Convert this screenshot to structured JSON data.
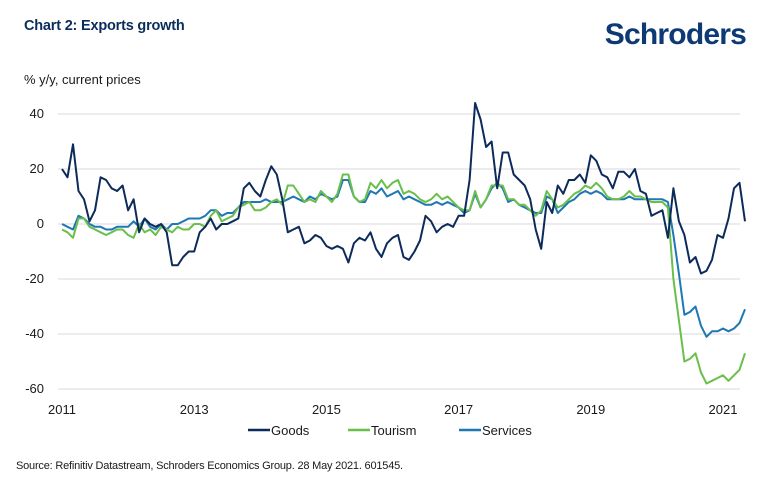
{
  "header": {
    "title": "Chart 2: Exports growth",
    "logo": "Schroders",
    "unit_label": "% y/y, current prices"
  },
  "footer": {
    "source": "Source: Refinitiv Datastream, Schroders Economics Group. 28 May 2021. 601545."
  },
  "colors": {
    "goods": "#0d2b5a",
    "tourism": "#6abf4b",
    "services": "#1f77b4",
    "grid": "#d9d9d9",
    "title": "#0b2d5b"
  },
  "chart_data": {
    "type": "line",
    "title": "Chart 2: Exports growth",
    "xlabel": "",
    "ylabel": "% y/y, current prices",
    "ylim": [
      -60,
      40
    ],
    "yticks": [
      40,
      20,
      0,
      -20,
      -40,
      -60
    ],
    "xlim": [
      2011.0,
      2021.25
    ],
    "xticks": [
      "2011",
      "2013",
      "2015",
      "2017",
      "2019",
      "2021"
    ],
    "grid": true,
    "legend_position": "bottom",
    "x_start": 2011.0,
    "x_step_months": 1,
    "series": [
      {
        "name": "Goods",
        "color": "#0d2b5a",
        "values": [
          20,
          17,
          29,
          12,
          9,
          1,
          5,
          17,
          16,
          13,
          12,
          14,
          5,
          9,
          -3,
          2,
          0,
          -1,
          0,
          -3,
          -15,
          -15,
          -12,
          -10,
          -10,
          -3,
          -1,
          2,
          -2,
          0,
          0,
          1,
          2,
          13,
          15,
          12,
          10,
          16,
          21,
          18,
          9,
          -3,
          -2,
          -1,
          -7,
          -6,
          -4,
          -5,
          -8,
          -9,
          -8,
          -9,
          -14,
          -7,
          -5,
          -6,
          -3,
          -9,
          -12,
          -7,
          -5,
          -4,
          -12,
          -13,
          -10,
          -6,
          3,
          1,
          -3,
          -1,
          0,
          -1,
          3,
          3,
          16,
          44,
          38,
          28,
          30,
          13,
          26,
          26,
          18,
          16,
          14,
          9,
          -2,
          -9,
          8,
          4,
          14,
          11,
          16,
          16,
          18,
          15,
          25,
          23,
          18,
          17,
          13,
          19,
          19,
          17,
          20,
          12,
          11,
          3,
          4,
          5,
          -5,
          13,
          1,
          -4,
          -14,
          -12,
          -18,
          -17,
          -13,
          -4,
          -5,
          2,
          13,
          15,
          1
        ]
      },
      {
        "name": "Tourism",
        "color": "#6abf4b",
        "values": [
          -2,
          -3,
          -5,
          2,
          2,
          -1,
          -2,
          -3,
          -4,
          -3,
          -2,
          -2,
          -4,
          -5,
          0,
          -3,
          -2,
          -4,
          -1,
          -2,
          -3,
          -1,
          -2,
          -2,
          0,
          0,
          -1,
          3,
          5,
          1,
          2,
          3,
          6,
          7,
          8,
          5,
          5,
          6,
          8,
          9,
          7,
          14,
          14,
          11,
          8,
          9,
          8,
          12,
          10,
          8,
          11,
          18,
          18,
          10,
          8,
          9,
          15,
          13,
          16,
          13,
          15,
          16,
          11,
          12,
          11,
          9,
          8,
          9,
          11,
          9,
          10,
          8,
          6,
          5,
          5,
          12,
          6,
          9,
          14,
          14,
          14,
          9,
          9,
          7,
          7,
          5,
          3,
          5,
          12,
          9,
          6,
          7,
          9,
          11,
          12,
          14,
          13,
          15,
          13,
          10,
          9,
          9,
          10,
          12,
          10,
          10,
          9,
          8,
          8,
          8,
          6,
          -20,
          -35,
          -50,
          -49,
          -47,
          -54,
          -58,
          -57,
          -56,
          -55,
          -57,
          -55,
          -53,
          -47
        ]
      },
      {
        "name": "Services",
        "color": "#1f77b4",
        "values": [
          0,
          -1,
          -2,
          3,
          2,
          0,
          -1,
          -1,
          -2,
          -2,
          -1,
          -1,
          -1,
          1,
          -1,
          2,
          -1,
          -2,
          0,
          -2,
          0,
          0,
          1,
          2,
          2,
          2,
          3,
          5,
          5,
          3,
          4,
          4,
          6,
          8,
          8,
          8,
          8,
          9,
          8,
          8,
          8,
          9,
          10,
          9,
          8,
          10,
          9,
          11,
          10,
          9,
          10,
          16,
          16,
          10,
          8,
          8,
          12,
          11,
          13,
          10,
          11,
          12,
          9,
          10,
          9,
          8,
          7,
          7,
          8,
          7,
          8,
          7,
          6,
          4,
          5,
          11,
          6,
          9,
          13,
          15,
          13,
          8,
          9,
          7,
          6,
          5,
          4,
          4,
          10,
          9,
          4,
          6,
          8,
          9,
          11,
          12,
          11,
          12,
          11,
          9,
          9,
          9,
          9,
          10,
          9,
          9,
          9,
          9,
          9,
          9,
          8,
          -4,
          -18,
          -33,
          -32,
          -30,
          -37,
          -41,
          -39,
          -39,
          -38,
          -39,
          -38,
          -36,
          -31
        ]
      }
    ]
  },
  "legend": {
    "items": [
      {
        "label": "Goods"
      },
      {
        "label": "Tourism"
      },
      {
        "label": "Services"
      }
    ]
  }
}
